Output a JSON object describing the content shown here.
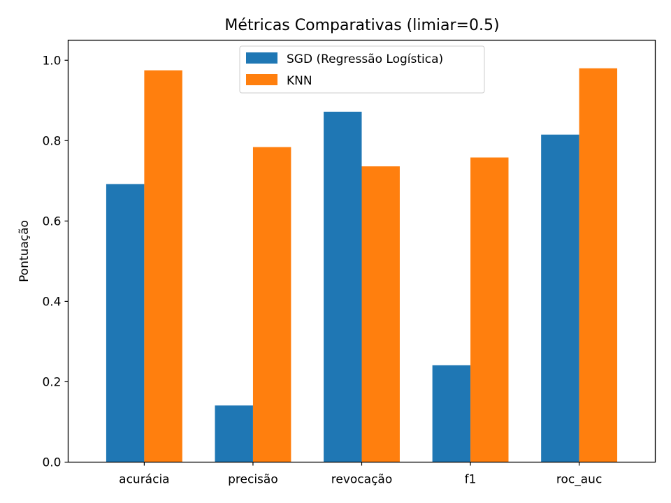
{
  "chart_data": {
    "type": "bar",
    "title": "Métricas Comparativas (limiar=0.5)",
    "xlabel": "",
    "ylabel": "Pontuação",
    "categories": [
      "acurácia",
      "precisão",
      "revocação",
      "f1",
      "roc_auc"
    ],
    "series": [
      {
        "name": "SGD (Regressão Logística)",
        "color": "#1f77b4",
        "values": [
          0.692,
          0.141,
          0.872,
          0.241,
          0.815
        ]
      },
      {
        "name": "KNN",
        "color": "#ff7f0e",
        "values": [
          0.975,
          0.784,
          0.736,
          0.758,
          0.98
        ]
      }
    ],
    "ylim": [
      0,
      1.05
    ],
    "yticks": [
      0.0,
      0.2,
      0.4,
      0.6,
      0.8,
      1.0
    ],
    "ytick_labels": [
      "0.0",
      "0.2",
      "0.4",
      "0.6",
      "0.8",
      "1.0"
    ],
    "grid": false,
    "legend_position": "top-center"
  }
}
